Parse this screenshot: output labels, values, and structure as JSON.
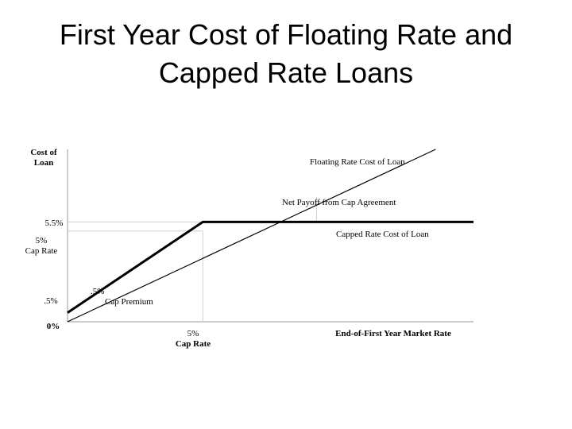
{
  "slide": {
    "title_line1": "First Year Cost of Floating Rate and",
    "title_line2": "Capped Rate Loans"
  },
  "chart_data": {
    "type": "line",
    "title": "First Year Cost of Floating Rate and Capped Rate Loans",
    "xlabel": "End-of-First Year Market Rate",
    "ylabel_line1": "Cost of",
    "ylabel_line2": "Loan",
    "x_ticks": [
      {
        "line1": "5%",
        "line2": "Cap Rate",
        "value": 5
      }
    ],
    "y_ticks": [
      {
        "label": "0%",
        "value": 0
      },
      {
        "label": ".5%",
        "value": 0.5
      },
      {
        "label": "5%",
        "label2": "Cap Rate",
        "value": 5
      },
      {
        "label": "5.5%",
        "value": 5.5
      }
    ],
    "xlim": [
      0,
      15
    ],
    "ylim": [
      0,
      9.5
    ],
    "series": [
      {
        "name": "Floating Rate Cost of Loan",
        "stroke": "#000000",
        "weight": "thin",
        "points": [
          [
            0,
            0
          ],
          [
            13.6,
            9.5
          ]
        ]
      },
      {
        "name": "Capped Rate Cost of Loan",
        "stroke": "#000000",
        "weight": "thick",
        "points": [
          [
            0,
            0.5
          ],
          [
            5,
            5.5
          ],
          [
            15,
            5.5
          ]
        ]
      }
    ],
    "annotations": {
      "net_payoff": "Net Payoff from Cap Agreement",
      "cap_premium_value": ".5%",
      "cap_premium_label": "Cap Premium"
    }
  }
}
